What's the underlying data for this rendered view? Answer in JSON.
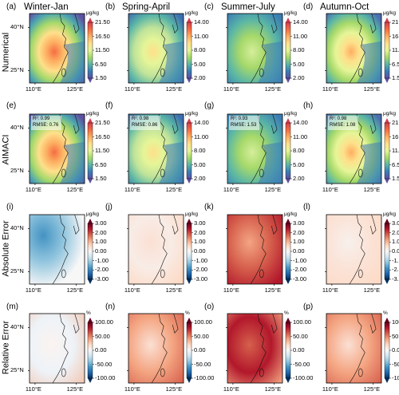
{
  "columns": [
    {
      "letter_row": [
        "(a)",
        "(e)",
        "(i)",
        "(m)"
      ],
      "title": "Winter-Jan"
    },
    {
      "letter_row": [
        "(b)",
        "(f)",
        "(j)",
        "(n)"
      ],
      "title": "Spring-April"
    },
    {
      "letter_row": [
        "(c)",
        "(g)",
        "(k)",
        "(o)"
      ],
      "title": "Summer-July"
    },
    {
      "letter_row": [
        "(d)",
        "(h)",
        "(l)",
        "(p)"
      ],
      "title": "Autumn-Oct"
    }
  ],
  "rows": [
    {
      "label": "Numerical",
      "kind": "concentration"
    },
    {
      "label": "AIMACI",
      "kind": "concentration"
    },
    {
      "label": "Absolute Error",
      "kind": "abs"
    },
    {
      "label": "Relative Error",
      "kind": "rel"
    }
  ],
  "axis": {
    "yticks": [
      "40°N",
      "25°N"
    ],
    "xticks": [
      "110°E",
      "125°E"
    ]
  },
  "units": {
    "conc": "μg/kg",
    "rel": "%"
  },
  "colorbars": {
    "winter_conc": [
      "21.50",
      "16.50",
      "11.50",
      "6.50",
      "1.50"
    ],
    "season_conc": [
      "14.00",
      "11.00",
      "8.00",
      "5.00",
      "2.00"
    ],
    "autumn_conc": [
      "21.50",
      "16.50",
      "11.50",
      "6.50",
      "1.50"
    ],
    "abs": [
      "3.00",
      "2.00",
      "1.00",
      "0.00",
      "-1.00",
      "-2.00",
      "-3.00"
    ],
    "rel": [
      "100.00",
      "50.00",
      "0.00",
      "-50.00",
      "-100.00"
    ]
  },
  "metrics": [
    {
      "r2": "R²: 0.99",
      "rmse": "RMSE: 0.76"
    },
    {
      "r2": "R²: 0.98",
      "rmse": "RMSE: 0.86"
    },
    {
      "r2": "R²: 0.93",
      "rmse": "RMSE: 1.53"
    },
    {
      "r2": "R²: 0.98",
      "rmse": "RMSE: 1.08"
    }
  ],
  "colors": {
    "viridis_like": [
      "#5e4fa2",
      "#3a7db5",
      "#5ab5a6",
      "#a6d96a",
      "#e6f598",
      "#fee08b",
      "#fdae61",
      "#f46d43",
      "#d53e4f"
    ],
    "rdbu": [
      "#053061",
      "#2166ac",
      "#4393c3",
      "#92c5de",
      "#d1e5f0",
      "#f7f7f7",
      "#fddbc7",
      "#f4a582",
      "#d6604d",
      "#b2182b",
      "#67001f"
    ]
  }
}
